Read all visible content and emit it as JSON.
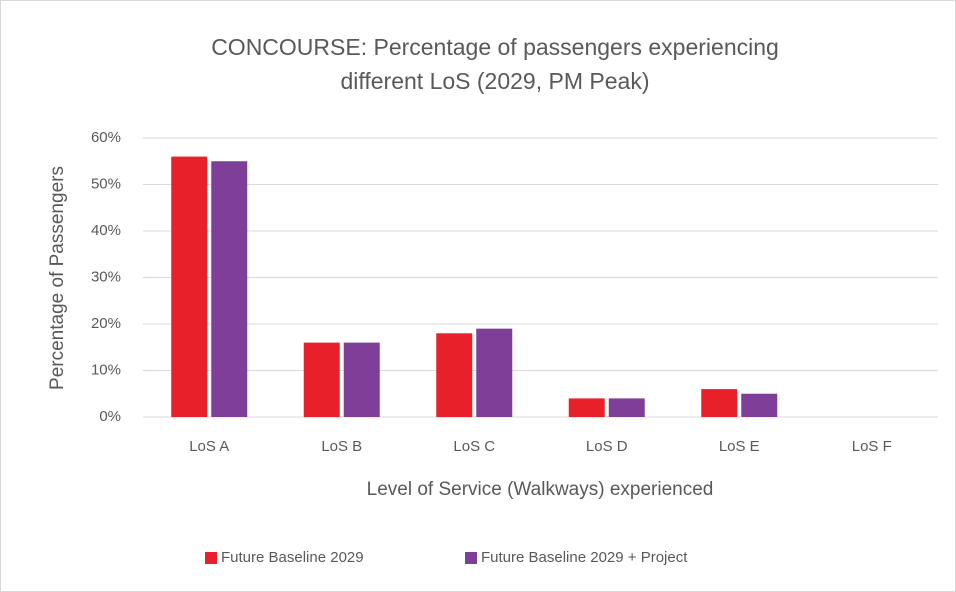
{
  "chart_data": {
    "type": "bar",
    "title": "CONCOURSE: Percentage of passengers experiencing different LoS (2029, PM Peak)",
    "x_label": "Level of Service (Walkways) experienced",
    "y_label": "Percentage of Passengers",
    "categories": [
      "LoS A",
      "LoS B",
      "LoS C",
      "LoS D",
      "LoS E",
      "LoS F"
    ],
    "series": [
      {
        "name": "Future Baseline 2029",
        "color": "#e8202a",
        "values": [
          56,
          16,
          18,
          4,
          6,
          0
        ]
      },
      {
        "name": "Future Baseline 2029 + Project",
        "color": "#7f3f98",
        "values": [
          55,
          16,
          19,
          4,
          5,
          0
        ]
      }
    ],
    "ylim": [
      0,
      60
    ],
    "yticks": [
      {
        "value": 0,
        "label": "0%"
      },
      {
        "value": 10,
        "label": "10%"
      },
      {
        "value": 20,
        "label": "20%"
      },
      {
        "value": 30,
        "label": "30%"
      },
      {
        "value": 40,
        "label": "40%"
      },
      {
        "value": 50,
        "label": "50%"
      },
      {
        "value": 60,
        "label": "60%"
      }
    ],
    "grid": true,
    "legend": "bottom"
  }
}
